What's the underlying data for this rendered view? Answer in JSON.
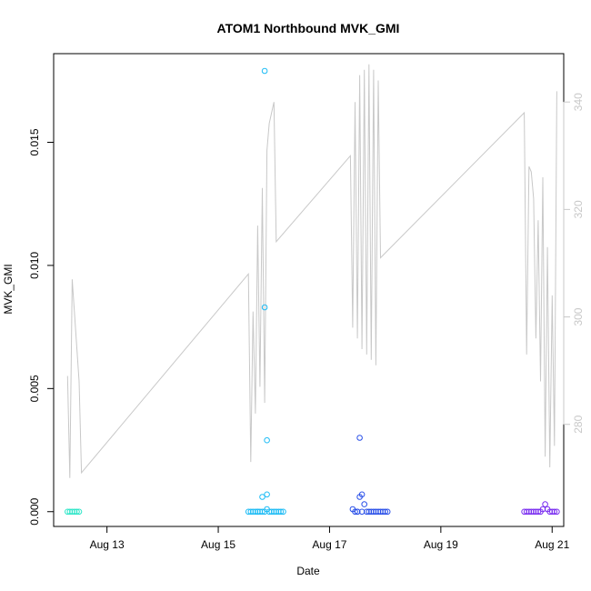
{
  "chart_data": {
    "type": "scatter",
    "title": "ATOM1 Northbound MVK_GMI",
    "xlabel": "Date",
    "ylabel": "MVK_GMI",
    "xlim": [
      "2023-08-12 01:00",
      "2023-08-21 05:00"
    ],
    "ylim": [
      -0.0006,
      0.0186
    ],
    "y2lim": [
      261,
      349
    ],
    "x_ticks": [
      {
        "date": "2023-08-13",
        "label": "Aug 13"
      },
      {
        "date": "2023-08-15",
        "label": "Aug 15"
      },
      {
        "date": "2023-08-17",
        "label": "Aug 17"
      },
      {
        "date": "2023-08-19",
        "label": "Aug 19"
      },
      {
        "date": "2023-08-21",
        "label": "Aug 21"
      }
    ],
    "y_ticks": [
      {
        "value": 0.0,
        "label": "0.000"
      },
      {
        "value": 0.005,
        "label": "0.005"
      },
      {
        "value": 0.01,
        "label": "0.010"
      },
      {
        "value": 0.015,
        "label": "0.015"
      }
    ],
    "y2_ticks": [
      {
        "value": 280,
        "label": "280"
      },
      {
        "value": 300,
        "label": "300"
      },
      {
        "value": 320,
        "label": "320"
      },
      {
        "value": 340,
        "label": "340"
      }
    ],
    "series": [
      {
        "kind": "points",
        "color": "#2EE6C8",
        "points": [
          [
            "2023-08-12 07:00",
            0.0
          ],
          [
            "2023-08-12 08:00",
            0.0
          ],
          [
            "2023-08-12 09:00",
            0.0
          ],
          [
            "2023-08-12 10:00",
            0.0
          ],
          [
            "2023-08-12 11:00",
            0.0
          ],
          [
            "2023-08-12 12:00",
            0.0
          ]
        ]
      },
      {
        "kind": "points",
        "color": "#1EBCF5",
        "points": [
          [
            "2023-08-15 13:00",
            0.0
          ],
          [
            "2023-08-15 14:00",
            0.0
          ],
          [
            "2023-08-15 15:00",
            0.0
          ],
          [
            "2023-08-15 16:00",
            0.0
          ],
          [
            "2023-08-15 17:00",
            0.0
          ],
          [
            "2023-08-15 18:00",
            0.0
          ],
          [
            "2023-08-15 19:00",
            0.0
          ],
          [
            "2023-08-15 20:00",
            0.0
          ],
          [
            "2023-08-15 21:00",
            0.0001
          ],
          [
            "2023-08-15 22:00",
            0.0
          ],
          [
            "2023-08-15 23:00",
            0.0
          ],
          [
            "2023-08-16 00:00",
            0.0
          ],
          [
            "2023-08-16 01:00",
            0.0
          ],
          [
            "2023-08-16 02:00",
            0.0
          ],
          [
            "2023-08-16 03:00",
            0.0
          ],
          [
            "2023-08-15 20:00",
            0.0179
          ],
          [
            "2023-08-15 20:00",
            0.0083
          ],
          [
            "2023-08-15 21:00",
            0.0029
          ],
          [
            "2023-08-15 21:00",
            0.0007
          ],
          [
            "2023-08-15 19:00",
            0.0006
          ],
          [
            "2023-08-15 17:00",
            0.0
          ],
          [
            "2023-08-16 04:00",
            0.0
          ]
        ]
      },
      {
        "kind": "points",
        "color": "#2A50E8",
        "points": [
          [
            "2023-08-17 10:00",
            0.0001
          ],
          [
            "2023-08-17 11:00",
            0.0
          ],
          [
            "2023-08-17 12:00",
            0.0
          ],
          [
            "2023-08-17 13:00",
            0.0006
          ],
          [
            "2023-08-17 14:00",
            0.0007
          ],
          [
            "2023-08-17 15:00",
            0.0003
          ],
          [
            "2023-08-17 16:00",
            0.0
          ],
          [
            "2023-08-17 17:00",
            0.0
          ],
          [
            "2023-08-17 18:00",
            0.0
          ],
          [
            "2023-08-17 19:00",
            0.0
          ],
          [
            "2023-08-17 20:00",
            0.0
          ],
          [
            "2023-08-17 21:00",
            0.0
          ],
          [
            "2023-08-17 22:00",
            0.0
          ],
          [
            "2023-08-17 23:00",
            0.0
          ],
          [
            "2023-08-18 00:00",
            0.0
          ],
          [
            "2023-08-18 01:00",
            0.0
          ],
          [
            "2023-08-17 13:00",
            0.003
          ],
          [
            "2023-08-17 12:00",
            0.0
          ],
          [
            "2023-08-17 14:00",
            0.0
          ]
        ]
      },
      {
        "kind": "points",
        "color": "#7A2EF0",
        "points": [
          [
            "2023-08-20 12:00",
            0.0
          ],
          [
            "2023-08-20 13:00",
            0.0
          ],
          [
            "2023-08-20 14:00",
            0.0
          ],
          [
            "2023-08-20 15:00",
            0.0
          ],
          [
            "2023-08-20 16:00",
            0.0
          ],
          [
            "2023-08-20 17:00",
            0.0
          ],
          [
            "2023-08-20 18:00",
            0.0
          ],
          [
            "2023-08-20 19:00",
            0.0
          ],
          [
            "2023-08-20 20:00",
            0.0001
          ],
          [
            "2023-08-20 21:00",
            0.0003
          ],
          [
            "2023-08-20 22:00",
            0.0001
          ],
          [
            "2023-08-20 23:00",
            0.0
          ],
          [
            "2023-08-21 00:00",
            0.0
          ],
          [
            "2023-08-21 01:00",
            0.0
          ],
          [
            "2023-08-21 02:00",
            0.0
          ]
        ]
      },
      {
        "kind": "line",
        "axis": "right",
        "color": "#c8c8c8",
        "points": [
          [
            "2023-08-12 07:00",
            289
          ],
          [
            "2023-08-12 08:00",
            270
          ],
          [
            "2023-08-12 09:00",
            307
          ],
          [
            "2023-08-12 12:00",
            288
          ],
          [
            "2023-08-12 13:00",
            271
          ],
          [
            "2023-08-15 13:00",
            308
          ],
          [
            "2023-08-15 14:00",
            273
          ],
          [
            "2023-08-15 15:00",
            301
          ],
          [
            "2023-08-15 16:00",
            282
          ],
          [
            "2023-08-15 17:00",
            317
          ],
          [
            "2023-08-15 18:00",
            287
          ],
          [
            "2023-08-15 19:00",
            324
          ],
          [
            "2023-08-15 20:00",
            284
          ],
          [
            "2023-08-15 21:00",
            331
          ],
          [
            "2023-08-15 22:00",
            336
          ],
          [
            "2023-08-15 23:00",
            338
          ],
          [
            "2023-08-16 00:00",
            340
          ],
          [
            "2023-08-16 01:00",
            314
          ],
          [
            "2023-08-17 09:00",
            330
          ],
          [
            "2023-08-17 10:00",
            298
          ],
          [
            "2023-08-17 11:00",
            340
          ],
          [
            "2023-08-17 12:00",
            296
          ],
          [
            "2023-08-17 13:00",
            345
          ],
          [
            "2023-08-17 14:00",
            294
          ],
          [
            "2023-08-17 15:00",
            346
          ],
          [
            "2023-08-17 16:00",
            293
          ],
          [
            "2023-08-17 17:00",
            347
          ],
          [
            "2023-08-17 18:00",
            292
          ],
          [
            "2023-08-17 19:00",
            346
          ],
          [
            "2023-08-17 20:00",
            291
          ],
          [
            "2023-08-17 21:00",
            344
          ],
          [
            "2023-08-17 22:00",
            311
          ],
          [
            "2023-08-20 12:00",
            338
          ],
          [
            "2023-08-20 13:00",
            293
          ],
          [
            "2023-08-20 14:00",
            328
          ],
          [
            "2023-08-20 15:00",
            327
          ],
          [
            "2023-08-20 16:00",
            322
          ],
          [
            "2023-08-20 17:00",
            296
          ],
          [
            "2023-08-20 18:00",
            318
          ],
          [
            "2023-08-20 19:00",
            288
          ],
          [
            "2023-08-20 20:00",
            326
          ],
          [
            "2023-08-20 21:00",
            274
          ],
          [
            "2023-08-20 22:00",
            313
          ],
          [
            "2023-08-20 23:00",
            272
          ],
          [
            "2023-08-21 00:00",
            304
          ],
          [
            "2023-08-21 01:00",
            276
          ],
          [
            "2023-08-21 02:00",
            342
          ]
        ]
      }
    ],
    "grid": false,
    "legend": "none"
  }
}
